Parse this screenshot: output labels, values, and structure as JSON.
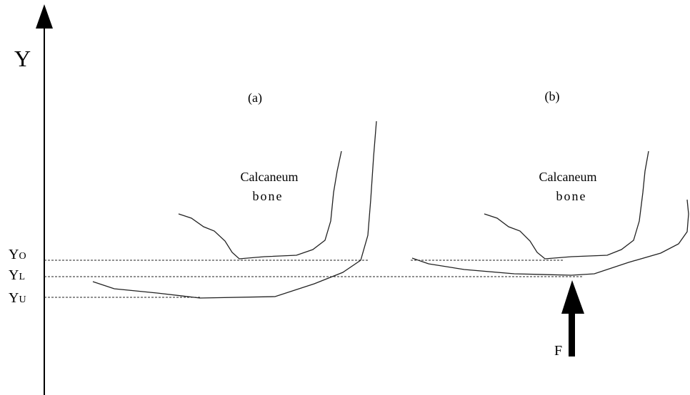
{
  "axis_label": "Y",
  "panels": [
    {
      "label": "(a)",
      "bone_label": [
        "Calcaneum",
        "bone"
      ]
    },
    {
      "label": "(b)",
      "bone_label": [
        "Calcaneum",
        "bone"
      ]
    }
  ],
  "levels": [
    {
      "main": "Y",
      "sub": "O"
    },
    {
      "main": "Y",
      "sub": "L"
    },
    {
      "main": "Y",
      "sub": "U"
    }
  ],
  "force_label": "F"
}
